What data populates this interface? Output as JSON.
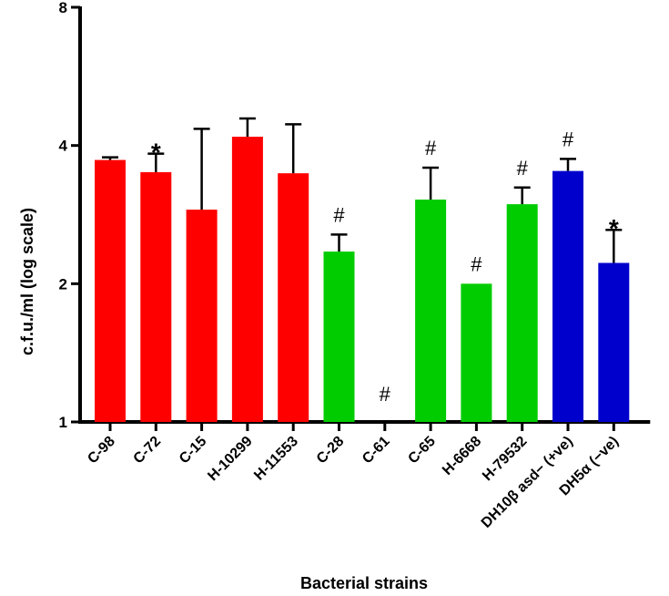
{
  "chart_data": {
    "type": "bar",
    "title": "",
    "xlabel": "Bacterial strains",
    "ylabel": "c.f.u./ml (log scale)",
    "yscale": "log2",
    "ylim": [
      1,
      8
    ],
    "yticks": [
      1,
      2,
      4,
      8
    ],
    "ytick_labels": [
      "1",
      "2",
      "4",
      "8"
    ],
    "categories": [
      "C-98",
      "C-72",
      "C-15",
      "H-10299",
      "H-11553",
      "C-28",
      "C-61",
      "C-65",
      "H-6668",
      "H-79532",
      "DH10β asd− (+ve)",
      "DH5α (−ve)"
    ],
    "values": [
      3.72,
      3.5,
      2.9,
      4.18,
      3.48,
      2.35,
      0,
      3.05,
      2.0,
      2.98,
      3.52,
      2.22
    ],
    "error_upper": [
      3.77,
      3.84,
      4.35,
      4.58,
      4.45,
      2.56,
      null,
      3.58,
      null,
      3.24,
      3.74,
      2.62
    ],
    "colors": [
      "#ff0000",
      "#ff0000",
      "#ff0000",
      "#ff0000",
      "#ff0000",
      "#00cc00",
      "#00cc00",
      "#00cc00",
      "#00cc00",
      "#00cc00",
      "#0000cc",
      "#0000cc"
    ],
    "annotations": [
      "",
      "*",
      "",
      "",
      "",
      "#",
      "#",
      "#",
      "#",
      "#",
      "#",
      "*"
    ],
    "grid": false,
    "legend": "none"
  }
}
